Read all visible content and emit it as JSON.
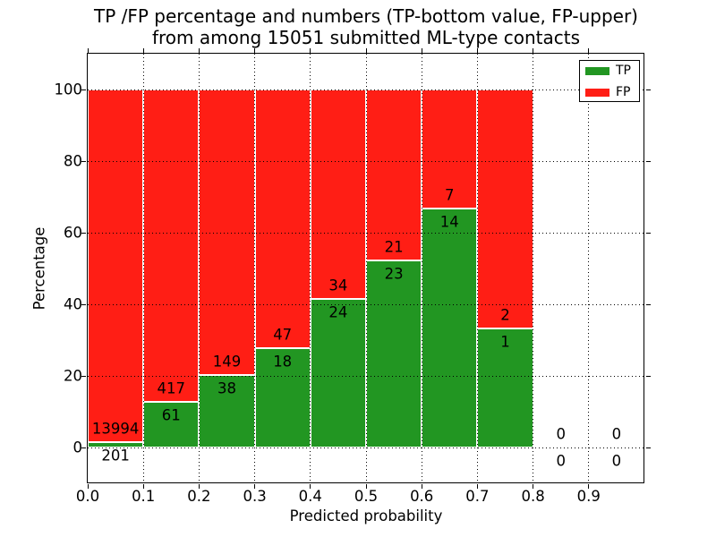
{
  "chart_data": {
    "type": "bar",
    "stacked": true,
    "title_line1": "TP /FP percentage and numbers (TP-bottom value, FP-upper)",
    "title_line2": "from among 15051 submitted ML-type contacts",
    "total_submitted_contacts": 15051,
    "xlabel": "Predicted probability",
    "ylabel": "Percentage",
    "xlim": [
      0.0,
      1.0
    ],
    "ylim": [
      -10,
      110
    ],
    "x_ticks": [
      0.0,
      0.1,
      0.2,
      0.3,
      0.4,
      0.5,
      0.6,
      0.7,
      0.8,
      0.9
    ],
    "x_tick_labels": [
      "0.0",
      "0.1",
      "0.2",
      "0.3",
      "0.4",
      "0.5",
      "0.6",
      "0.7",
      "0.8",
      "0.9"
    ],
    "y_ticks": [
      0,
      20,
      40,
      60,
      80,
      100
    ],
    "y_tick_labels": [
      "0",
      "20",
      "40",
      "60",
      "80",
      "100"
    ],
    "grid": true,
    "grid_style": "dotted",
    "legend": {
      "position": "upper right",
      "entries": [
        {
          "label": "TP",
          "color": "#229622"
        },
        {
          "label": "FP",
          "color": "#ff1e15"
        }
      ]
    },
    "bins": [
      {
        "x_range": [
          0.0,
          0.1
        ],
        "tp": 201,
        "fp": 13994
      },
      {
        "x_range": [
          0.1,
          0.2
        ],
        "tp": 61,
        "fp": 417
      },
      {
        "x_range": [
          0.2,
          0.3
        ],
        "tp": 38,
        "fp": 149
      },
      {
        "x_range": [
          0.3,
          0.4
        ],
        "tp": 18,
        "fp": 47
      },
      {
        "x_range": [
          0.4,
          0.5
        ],
        "tp": 24,
        "fp": 34
      },
      {
        "x_range": [
          0.5,
          0.6
        ],
        "tp": 23,
        "fp": 21
      },
      {
        "x_range": [
          0.6,
          0.7
        ],
        "tp": 14,
        "fp": 7
      },
      {
        "x_range": [
          0.7,
          0.8
        ],
        "tp": 1,
        "fp": 2
      },
      {
        "x_range": [
          0.8,
          0.9
        ],
        "tp": 0,
        "fp": 0
      },
      {
        "x_range": [
          0.9,
          1.0
        ],
        "tp": 0,
        "fp": 0
      }
    ],
    "colors": {
      "tp": "#229622",
      "fp": "#ff1e15",
      "grid": "#000000",
      "frame": "#000000",
      "bar_edge": "#ffffff",
      "background": "#ffffff"
    }
  }
}
